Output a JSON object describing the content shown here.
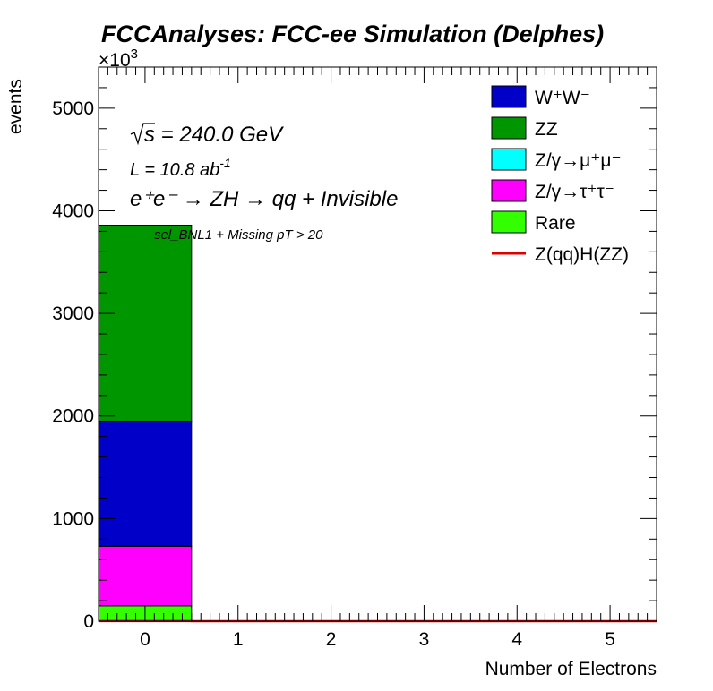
{
  "title": "FCCAnalyses: FCC-ee Simulation (Delphes)",
  "chart_data": {
    "type": "bar",
    "stacked": true,
    "x_categories": [
      "0",
      "1",
      "2",
      "3",
      "4",
      "5"
    ],
    "xlabel": "Number of Electrons",
    "ylabel": "events",
    "y_multiplier": "×10",
    "y_multiplier_exp": "3",
    "xlim": [
      -0.5,
      5.5
    ],
    "ylim": [
      0,
      5400
    ],
    "yticks": [
      "0",
      "1000",
      "2000",
      "3000",
      "4000",
      "5000"
    ],
    "series": [
      {
        "name": "Rare",
        "color": "#33ff00",
        "values": [
          150,
          0,
          0,
          0,
          0,
          0
        ]
      },
      {
        "name": "Z/γ→τ⁺τ⁻",
        "color": "#ff00ff",
        "values": [
          580,
          0,
          0,
          0,
          0,
          0
        ]
      },
      {
        "name": "Z/γ→μ⁺μ⁻",
        "color": "#00ffff",
        "values": [
          0,
          0,
          0,
          0,
          0,
          0
        ]
      },
      {
        "name": "W⁺W⁻",
        "color": "#0000c8",
        "values": [
          1220,
          0,
          0,
          0,
          0,
          0
        ]
      },
      {
        "name": "ZZ",
        "color": "#009600",
        "values": [
          1910,
          0,
          0,
          0,
          0,
          0
        ]
      }
    ],
    "signal": {
      "name": "Z(qq)H(ZZ)",
      "color": "#dd0000",
      "values": [
        0.6,
        0,
        0,
        0,
        0,
        0
      ]
    },
    "annotations": {
      "sqrt_s": "s = 240.0 GeV",
      "lumi": "L = 10.8 ab",
      "lumi_exp": "-1",
      "process": "e⁺e⁻ → ZH → qq + Invisible",
      "selection": "sel_BNL1 + Missing pT > 20"
    },
    "legend": {
      "position": "top-right",
      "entries": [
        {
          "label": "W⁺W⁻",
          "color": "#0000c8",
          "kind": "box"
        },
        {
          "label": "ZZ",
          "color": "#009600",
          "kind": "box"
        },
        {
          "label": "Z/γ→μ⁺μ⁻",
          "color": "#00ffff",
          "kind": "box"
        },
        {
          "label": "Z/γ→τ⁺τ⁻",
          "color": "#ff00ff",
          "kind": "box"
        },
        {
          "label": "Rare",
          "color": "#33ff00",
          "kind": "box"
        },
        {
          "label": "Z(qq)H(ZZ)",
          "color": "#dd0000",
          "kind": "line"
        }
      ]
    }
  }
}
